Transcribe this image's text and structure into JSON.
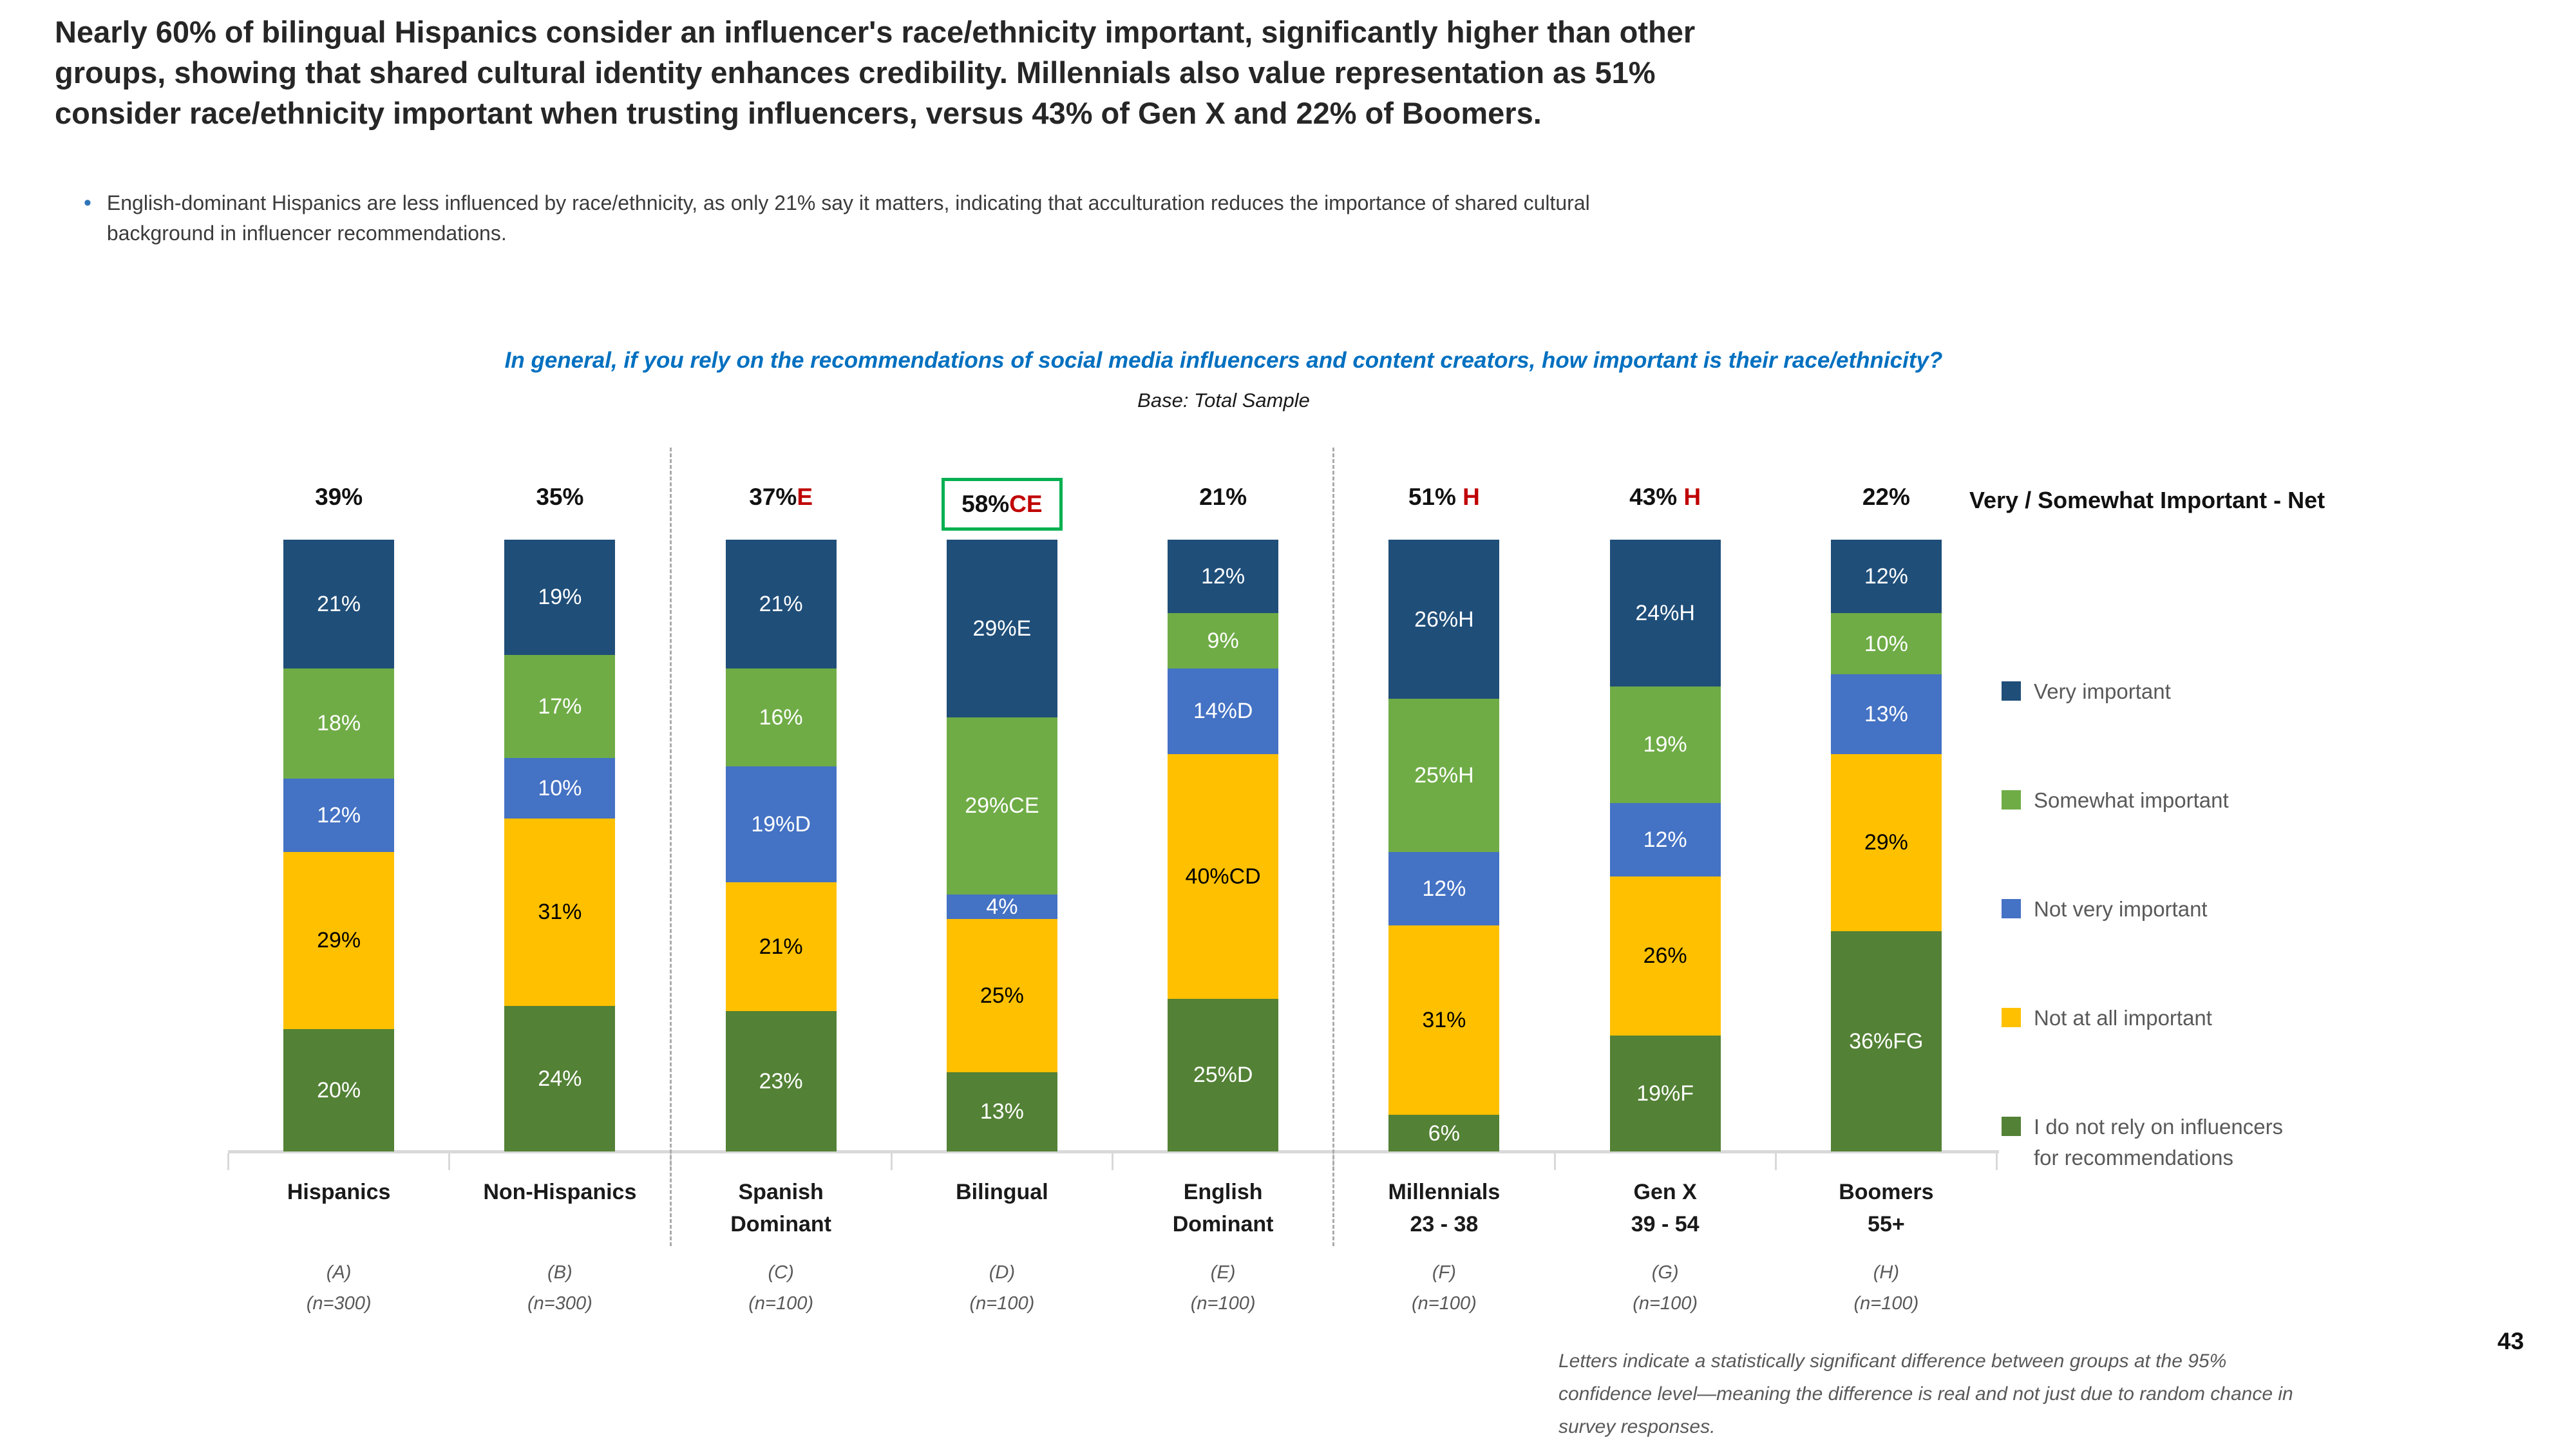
{
  "slide": {
    "headline": "Nearly 60% of bilingual Hispanics consider an influencer's race/ethnicity important, significantly higher than other\ngroups, showing that shared cultural identity enhances credibility. Millennials also value representation as 51%\nconsider race/ethnicity important when trusting influencers, versus 43% of Gen X and 22% of Boomers.",
    "bullet_marker": "•",
    "bullet": "English-dominant Hispanics are less influenced by race/ethnicity, as only 21% say it matters, indicating that acculturation reduces the importance of shared cultural\nbackground in influencer recommendations.",
    "question": "In general, if you rely on the recommendations of social media influencers and content creators, how important is their race/ethnicity?",
    "base_note": "Base: Total Sample",
    "net_axis_label": "Very / Somewhat Important - Net",
    "footnote": "Letters indicate a statistically significant difference between groups at the 95%\nconfidence level—meaning the difference is real and not just due to random chance in\nsurvey responses.",
    "page_number": "43"
  },
  "colors": {
    "significance_red": "#C00000",
    "highlight_box_green": "#00B050",
    "axis_gray": "#D9D9D9",
    "divider_gray": "#ABABAB",
    "question_blue": "#0070C0"
  },
  "chart_data": {
    "type": "bar",
    "stacked": true,
    "unit": "percent",
    "title": "In general, if you rely on the recommendations of social media influencers and content creators, how important is their race/ethnicity?",
    "base": "Base: Total Sample",
    "legend_position": "right",
    "grid": false,
    "ylim": [
      0,
      100
    ],
    "series": [
      {
        "name": "Very important",
        "color": "#1F4E79",
        "label_color": "#FFFFFF",
        "legend_label": "Very important"
      },
      {
        "name": "Somewhat important",
        "color": "#6FAC46",
        "label_color": "#FFFFFF",
        "legend_label": "Somewhat important"
      },
      {
        "name": "Not very important",
        "color": "#4472C4",
        "label_color": "#FFFFFF",
        "legend_label": "Not very important"
      },
      {
        "name": "Not at all important",
        "color": "#FFC000",
        "label_color": "#000000",
        "legend_label": "Not at all important"
      },
      {
        "name": "I do not rely on influencers for recommendations",
        "color": "#538135",
        "label_color": "#FFFFFF",
        "legend_label": "I do not rely on influencers\nfor recommendations"
      }
    ],
    "groups": [
      {
        "category": "Hispanics",
        "letter": "(A)",
        "n": "(n=300)",
        "net": {
          "text": "39%",
          "sig": "",
          "boxed": false
        },
        "segments": [
          {
            "label": "21%",
            "value": 21
          },
          {
            "label": "18%",
            "value": 18
          },
          {
            "label": "12%",
            "value": 12
          },
          {
            "label": "29%",
            "value": 29
          },
          {
            "label": "20%",
            "value": 20
          }
        ]
      },
      {
        "category": "Non-Hispanics",
        "letter": "(B)",
        "n": "(n=300)",
        "net": {
          "text": "35%",
          "sig": "",
          "boxed": false
        },
        "segments": [
          {
            "label": "19%",
            "value": 19
          },
          {
            "label": "17%",
            "value": 17
          },
          {
            "label": "10%",
            "value": 10
          },
          {
            "label": "31%",
            "value": 31
          },
          {
            "label": "24%",
            "value": 24
          }
        ]
      },
      {
        "category": "Spanish\nDominant",
        "letter": "(C)",
        "n": "(n=100)",
        "net": {
          "text": "37%",
          "sig": "E",
          "boxed": false
        },
        "segments": [
          {
            "label": "21%",
            "value": 21
          },
          {
            "label": "16%",
            "value": 16
          },
          {
            "label": "19%D",
            "value": 19
          },
          {
            "label": "21%",
            "value": 21
          },
          {
            "label": "23%",
            "value": 23
          }
        ]
      },
      {
        "category": "Bilingual",
        "letter": "(D)",
        "n": "(n=100)",
        "net": {
          "text": "58%",
          "sig": "CE",
          "boxed": true
        },
        "segments": [
          {
            "label": "29%E",
            "value": 29
          },
          {
            "label": "29%CE",
            "value": 29
          },
          {
            "label": "4%",
            "value": 4
          },
          {
            "label": "25%",
            "value": 25
          },
          {
            "label": "13%",
            "value": 13
          }
        ]
      },
      {
        "category": "English\nDominant",
        "letter": "(E)",
        "n": "(n=100)",
        "net": {
          "text": "21%",
          "sig": "",
          "boxed": false
        },
        "segments": [
          {
            "label": "12%",
            "value": 12
          },
          {
            "label": "9%",
            "value": 9
          },
          {
            "label": "14%D",
            "value": 14
          },
          {
            "label": "40%CD",
            "value": 40
          },
          {
            "label": "25%D",
            "value": 25
          }
        ]
      },
      {
        "category": "Millennials\n23 - 38",
        "letter": "(F)",
        "n": "(n=100)",
        "net": {
          "text": "51%",
          "sig": " H",
          "boxed": false
        },
        "segments": [
          {
            "label": "26%H",
            "value": 26
          },
          {
            "label": "25%H",
            "value": 25
          },
          {
            "label": "12%",
            "value": 12
          },
          {
            "label": "31%",
            "value": 31
          },
          {
            "label": "6%",
            "value": 6
          }
        ]
      },
      {
        "category": "Gen X\n39 - 54",
        "letter": "(G)",
        "n": "(n=100)",
        "net": {
          "text": "43%",
          "sig": " H",
          "boxed": false
        },
        "segments": [
          {
            "label": "24%H",
            "value": 24
          },
          {
            "label": "19%",
            "value": 19
          },
          {
            "label": "12%",
            "value": 12
          },
          {
            "label": "26%",
            "value": 26
          },
          {
            "label": "19%F",
            "value": 19
          }
        ]
      },
      {
        "category": "Boomers\n55+",
        "letter": "(H)",
        "n": "(n=100)",
        "net": {
          "text": "22%",
          "sig": "",
          "boxed": false
        },
        "segments": [
          {
            "label": "12%",
            "value": 12
          },
          {
            "label": "10%",
            "value": 10
          },
          {
            "label": "13%",
            "value": 13
          },
          {
            "label": "29%",
            "value": 29
          },
          {
            "label": "36%FG",
            "value": 36
          }
        ]
      }
    ]
  }
}
